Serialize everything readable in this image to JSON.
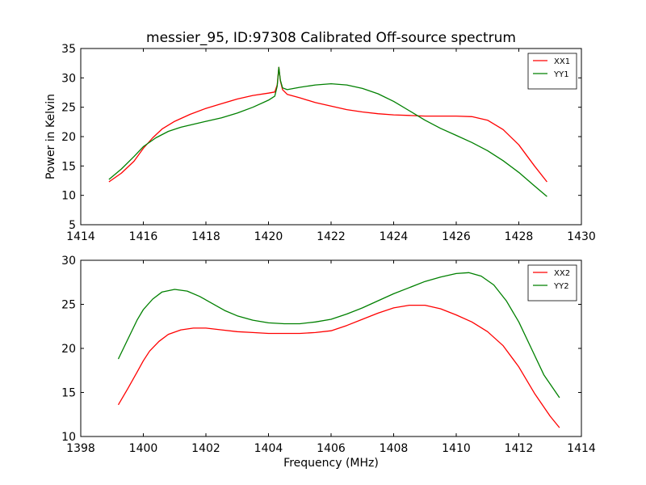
{
  "figure": {
    "title": "messier_95, ID:97308 Calibrated Off-source spectrum"
  },
  "chart_data": [
    {
      "type": "line",
      "title": "messier_95, ID:97308 Calibrated Off-source spectrum",
      "xlabel": "",
      "ylabel": "Power in Kelvin",
      "xlim": [
        1414,
        1430
      ],
      "ylim": [
        5,
        35
      ],
      "xticks": [
        1414,
        1416,
        1418,
        1420,
        1422,
        1424,
        1426,
        1428,
        1430
      ],
      "yticks": [
        5,
        10,
        15,
        20,
        25,
        30,
        35
      ],
      "grid": false,
      "legend": "top-right",
      "series": [
        {
          "name": "XX1",
          "color": "#ff0000",
          "points": [
            [
              1414.9,
              12.3
            ],
            [
              1415.3,
              13.8
            ],
            [
              1415.7,
              15.8
            ],
            [
              1416.0,
              18.0
            ],
            [
              1416.3,
              19.8
            ],
            [
              1416.6,
              21.3
            ],
            [
              1417.0,
              22.6
            ],
            [
              1417.5,
              23.8
            ],
            [
              1418.0,
              24.8
            ],
            [
              1418.5,
              25.6
            ],
            [
              1419.0,
              26.4
            ],
            [
              1419.5,
              27.0
            ],
            [
              1420.0,
              27.4
            ],
            [
              1420.2,
              27.6
            ],
            [
              1420.28,
              28.8
            ],
            [
              1420.33,
              31.8
            ],
            [
              1420.38,
              29.5
            ],
            [
              1420.45,
              28.0
            ],
            [
              1420.6,
              27.2
            ],
            [
              1421.0,
              26.6
            ],
            [
              1421.5,
              25.8
            ],
            [
              1422.0,
              25.2
            ],
            [
              1422.5,
              24.6
            ],
            [
              1423.0,
              24.2
            ],
            [
              1423.5,
              23.9
            ],
            [
              1424.0,
              23.7
            ],
            [
              1424.5,
              23.6
            ],
            [
              1425.0,
              23.5
            ],
            [
              1425.5,
              23.5
            ],
            [
              1426.0,
              23.5
            ],
            [
              1426.5,
              23.4
            ],
            [
              1427.0,
              22.8
            ],
            [
              1427.5,
              21.2
            ],
            [
              1428.0,
              18.6
            ],
            [
              1428.5,
              15.0
            ],
            [
              1428.9,
              12.3
            ]
          ]
        },
        {
          "name": "YY1",
          "color": "#008000",
          "points": [
            [
              1414.9,
              12.7
            ],
            [
              1415.3,
              14.5
            ],
            [
              1415.7,
              16.6
            ],
            [
              1416.0,
              18.3
            ],
            [
              1416.4,
              19.8
            ],
            [
              1416.8,
              20.9
            ],
            [
              1417.2,
              21.6
            ],
            [
              1417.6,
              22.1
            ],
            [
              1418.0,
              22.6
            ],
            [
              1418.5,
              23.2
            ],
            [
              1419.0,
              24.0
            ],
            [
              1419.5,
              25.0
            ],
            [
              1420.0,
              26.2
            ],
            [
              1420.2,
              26.9
            ],
            [
              1420.28,
              28.6
            ],
            [
              1420.33,
              31.8
            ],
            [
              1420.38,
              29.6
            ],
            [
              1420.45,
              28.3
            ],
            [
              1420.6,
              28.0
            ],
            [
              1421.0,
              28.4
            ],
            [
              1421.5,
              28.8
            ],
            [
              1422.0,
              29.0
            ],
            [
              1422.5,
              28.8
            ],
            [
              1423.0,
              28.2
            ],
            [
              1423.5,
              27.3
            ],
            [
              1424.0,
              26.0
            ],
            [
              1424.5,
              24.4
            ],
            [
              1425.0,
              22.8
            ],
            [
              1425.5,
              21.4
            ],
            [
              1426.0,
              20.2
            ],
            [
              1426.5,
              19.0
            ],
            [
              1427.0,
              17.6
            ],
            [
              1427.5,
              15.9
            ],
            [
              1428.0,
              13.9
            ],
            [
              1428.5,
              11.6
            ],
            [
              1428.9,
              9.8
            ]
          ]
        }
      ]
    },
    {
      "type": "line",
      "title": "",
      "xlabel": "Frequency (MHz)",
      "ylabel": "",
      "xlim": [
        1398,
        1414
      ],
      "ylim": [
        10,
        30
      ],
      "xticks": [
        1398,
        1400,
        1402,
        1404,
        1406,
        1408,
        1410,
        1412,
        1414
      ],
      "yticks": [
        10,
        15,
        20,
        25,
        30
      ],
      "grid": false,
      "legend": "top-right",
      "series": [
        {
          "name": "XX2",
          "color": "#ff0000",
          "points": [
            [
              1399.2,
              13.6
            ],
            [
              1399.5,
              15.4
            ],
            [
              1399.8,
              17.3
            ],
            [
              1400.0,
              18.6
            ],
            [
              1400.2,
              19.7
            ],
            [
              1400.5,
              20.8
            ],
            [
              1400.8,
              21.6
            ],
            [
              1401.2,
              22.1
            ],
            [
              1401.6,
              22.3
            ],
            [
              1402.0,
              22.3
            ],
            [
              1402.5,
              22.1
            ],
            [
              1403.0,
              21.9
            ],
            [
              1403.5,
              21.8
            ],
            [
              1404.0,
              21.7
            ],
            [
              1404.5,
              21.7
            ],
            [
              1405.0,
              21.7
            ],
            [
              1405.5,
              21.8
            ],
            [
              1406.0,
              22.0
            ],
            [
              1406.5,
              22.6
            ],
            [
              1407.0,
              23.3
            ],
            [
              1407.5,
              24.0
            ],
            [
              1408.0,
              24.6
            ],
            [
              1408.5,
              24.9
            ],
            [
              1409.0,
              24.9
            ],
            [
              1409.5,
              24.5
            ],
            [
              1410.0,
              23.8
            ],
            [
              1410.5,
              23.0
            ],
            [
              1411.0,
              21.9
            ],
            [
              1411.5,
              20.3
            ],
            [
              1412.0,
              17.9
            ],
            [
              1412.5,
              14.9
            ],
            [
              1413.0,
              12.3
            ],
            [
              1413.3,
              11.0
            ]
          ]
        },
        {
          "name": "YY2",
          "color": "#008000",
          "points": [
            [
              1399.2,
              18.8
            ],
            [
              1399.5,
              21.0
            ],
            [
              1399.8,
              23.2
            ],
            [
              1400.0,
              24.4
            ],
            [
              1400.3,
              25.6
            ],
            [
              1400.6,
              26.4
            ],
            [
              1401.0,
              26.7
            ],
            [
              1401.4,
              26.5
            ],
            [
              1401.8,
              25.9
            ],
            [
              1402.2,
              25.1
            ],
            [
              1402.6,
              24.3
            ],
            [
              1403.0,
              23.7
            ],
            [
              1403.5,
              23.2
            ],
            [
              1404.0,
              22.9
            ],
            [
              1404.5,
              22.8
            ],
            [
              1405.0,
              22.8
            ],
            [
              1405.5,
              23.0
            ],
            [
              1406.0,
              23.3
            ],
            [
              1406.5,
              23.9
            ],
            [
              1407.0,
              24.6
            ],
            [
              1407.5,
              25.4
            ],
            [
              1408.0,
              26.2
            ],
            [
              1408.5,
              26.9
            ],
            [
              1409.0,
              27.6
            ],
            [
              1409.5,
              28.1
            ],
            [
              1410.0,
              28.5
            ],
            [
              1410.4,
              28.6
            ],
            [
              1410.8,
              28.2
            ],
            [
              1411.2,
              27.2
            ],
            [
              1411.6,
              25.4
            ],
            [
              1412.0,
              23.0
            ],
            [
              1412.4,
              20.0
            ],
            [
              1412.8,
              17.0
            ],
            [
              1413.3,
              14.4
            ]
          ]
        }
      ]
    }
  ]
}
